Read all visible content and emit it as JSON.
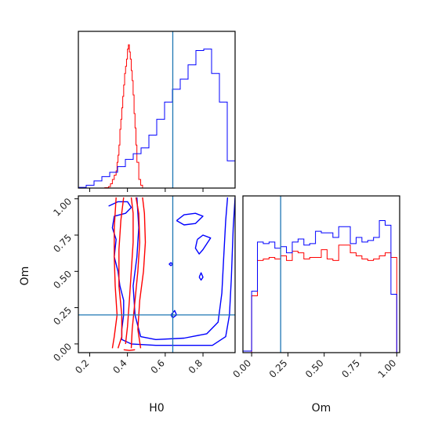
{
  "chart_data": {
    "type": "corner-plot",
    "parameters": [
      "H0",
      "Om"
    ],
    "truths": {
      "H0": 0.64,
      "Om": 0.2
    },
    "colors": {
      "series_a": "#ff0000",
      "series_b": "#0000ff",
      "truth_line": "#1f77b4"
    },
    "axes": {
      "H0": {
        "label": "H0",
        "range": [
          0.14,
          0.97
        ],
        "ticks": [
          0.2,
          0.4,
          0.6,
          0.8
        ],
        "tick_labels": [
          "0.2",
          "0.4",
          "0.6",
          "0.8"
        ]
      },
      "Om": {
        "label": "Om",
        "range": [
          -0.06,
          1.02
        ],
        "ticks": [
          0.0,
          0.25,
          0.5,
          0.75,
          1.0
        ],
        "tick_labels": [
          "0.00",
          "0.25",
          "0.50",
          "0.75",
          "1.00"
        ]
      }
    },
    "hist_h0": {
      "edges": [
        0.14,
        0.1815,
        0.223,
        0.2645,
        0.306,
        0.3475,
        0.389,
        0.4305,
        0.472,
        0.5135,
        0.555,
        0.5965,
        0.638,
        0.6795,
        0.721,
        0.7625,
        0.804,
        0.8455,
        0.887,
        0.9285,
        0.97
      ],
      "series": [
        {
          "counts": [
            0,
            0,
            0,
            0,
            0,
            0,
            0,
            0,
            0,
            0,
            0,
            0,
            0,
            0,
            0,
            0,
            0,
            0,
            0,
            0
          ],
          "fine_edges": [
            0.28,
            0.3,
            0.31,
            0.32,
            0.33,
            0.34,
            0.345,
            0.35,
            0.355,
            0.36,
            0.365,
            0.37,
            0.375,
            0.38,
            0.385,
            0.39,
            0.395,
            0.4,
            0.405,
            0.41,
            0.415,
            0.42,
            0.425,
            0.43,
            0.435,
            0.44,
            0.445,
            0.45,
            0.46,
            0.47,
            0.48
          ],
          "fine_counts": [
            0.003,
            0.01,
            0.03,
            0.06,
            0.09,
            0.12,
            0.18,
            0.23,
            0.3,
            0.41,
            0.48,
            0.56,
            0.64,
            0.72,
            0.8,
            0.85,
            0.9,
            0.97,
            1.0,
            0.95,
            0.9,
            0.82,
            0.75,
            0.65,
            0.52,
            0.42,
            0.3,
            0.18,
            0.06,
            0.02
          ]
        },
        {
          "counts": [
            0.005,
            0.02,
            0.05,
            0.08,
            0.11,
            0.15,
            0.2,
            0.24,
            0.28,
            0.37,
            0.48,
            0.6,
            0.69,
            0.76,
            0.86,
            0.96,
            0.97,
            0.8,
            0.6,
            0.19
          ],
          "fine_edges": [],
          "fine_counts": []
        }
      ]
    },
    "hist_om": {
      "edges": [
        -0.06,
        0.0,
        0.04,
        0.08,
        0.12,
        0.16,
        0.2,
        0.24,
        0.28,
        0.32,
        0.36,
        0.4,
        0.44,
        0.48,
        0.52,
        0.56,
        0.6,
        0.64,
        0.68,
        0.72,
        0.76,
        0.8,
        0.84,
        0.88,
        0.92,
        0.96,
        1.0,
        1.02
      ],
      "series": [
        {
          "counts": [
            0,
            0.37,
            0.6,
            0.61,
            0.62,
            0.61,
            0.63,
            0.6,
            0.66,
            0.65,
            0.61,
            0.62,
            0.62,
            0.67,
            0.61,
            0.6,
            0.7,
            0.7,
            0.65,
            0.63,
            0.61,
            0.6,
            0.61,
            0.63,
            0.65,
            0.62,
            0.0
          ]
        },
        {
          "counts": [
            0.01,
            0.4,
            0.72,
            0.71,
            0.72,
            0.68,
            0.69,
            0.65,
            0.72,
            0.74,
            0.7,
            0.71,
            0.79,
            0.78,
            0.78,
            0.75,
            0.82,
            0.82,
            0.71,
            0.75,
            0.72,
            0.73,
            0.75,
            0.86,
            0.83,
            0.38,
            0.0
          ]
        }
      ]
    },
    "contour_series_a": [
      [
        [
          0.35,
          -0.03
        ],
        [
          0.37,
          0.05
        ],
        [
          0.37,
          0.2
        ],
        [
          0.355,
          0.4
        ],
        [
          0.355,
          0.65
        ],
        [
          0.365,
          0.85
        ],
        [
          0.38,
          1.01
        ]
      ],
      [
        [
          0.42,
          -0.03
        ],
        [
          0.425,
          0.1
        ],
        [
          0.44,
          0.3
        ],
        [
          0.455,
          0.5
        ],
        [
          0.465,
          0.7
        ],
        [
          0.46,
          0.9
        ],
        [
          0.445,
          1.01
        ]
      ],
      [
        [
          0.32,
          -0.03
        ],
        [
          0.33,
          0.05
        ],
        [
          0.345,
          0.2
        ],
        [
          0.335,
          0.4
        ],
        [
          0.33,
          0.6
        ],
        [
          0.33,
          0.8
        ],
        [
          0.34,
          1.01
        ]
      ],
      [
        [
          0.47,
          -0.03
        ],
        [
          0.455,
          0.1
        ],
        [
          0.465,
          0.3
        ],
        [
          0.485,
          0.5
        ],
        [
          0.495,
          0.7
        ],
        [
          0.49,
          0.9
        ],
        [
          0.48,
          1.01
        ]
      ],
      [
        [
          0.39,
          0.0
        ],
        [
          0.4,
          0.12
        ],
        [
          0.41,
          0.3
        ],
        [
          0.42,
          0.5
        ],
        [
          0.43,
          0.7
        ],
        [
          0.43,
          0.9
        ],
        [
          0.42,
          1.01
        ]
      ],
      [
        [
          0.38,
          -0.04
        ],
        [
          0.41,
          -0.045
        ],
        [
          0.44,
          -0.04
        ]
      ]
    ],
    "contour_series_b": [
      [
        [
          0.3,
          0.95
        ],
        [
          0.35,
          0.98
        ],
        [
          0.4,
          0.98
        ],
        [
          0.42,
          0.94
        ],
        [
          0.39,
          0.9
        ],
        [
          0.33,
          0.88
        ],
        [
          0.32,
          0.8
        ],
        [
          0.34,
          0.72
        ],
        [
          0.33,
          0.6
        ],
        [
          0.35,
          0.5
        ],
        [
          0.36,
          0.4
        ],
        [
          0.38,
          0.3
        ],
        [
          0.38,
          0.2
        ],
        [
          0.37,
          0.1
        ],
        [
          0.37,
          0.03
        ],
        [
          0.42,
          0.0
        ],
        [
          0.55,
          -0.01
        ],
        [
          0.7,
          -0.01
        ],
        [
          0.85,
          -0.01
        ],
        [
          0.92,
          0.05
        ],
        [
          0.94,
          0.2
        ],
        [
          0.95,
          0.45
        ],
        [
          0.96,
          0.8
        ],
        [
          0.97,
          1.01
        ]
      ],
      [
        [
          0.45,
          1.01
        ],
        [
          0.46,
          0.8
        ],
        [
          0.45,
          0.6
        ],
        [
          0.43,
          0.4
        ],
        [
          0.44,
          0.2
        ],
        [
          0.47,
          0.05
        ],
        [
          0.55,
          0.03
        ],
        [
          0.7,
          0.04
        ],
        [
          0.82,
          0.07
        ],
        [
          0.88,
          0.15
        ],
        [
          0.9,
          0.35
        ],
        [
          0.91,
          0.6
        ],
        [
          0.92,
          0.85
        ],
        [
          0.93,
          1.01
        ]
      ],
      [
        [
          0.66,
          0.85
        ],
        [
          0.7,
          0.89
        ],
        [
          0.76,
          0.9
        ],
        [
          0.8,
          0.88
        ],
        [
          0.76,
          0.83
        ],
        [
          0.7,
          0.82
        ],
        [
          0.66,
          0.85
        ]
      ],
      [
        [
          0.77,
          0.72
        ],
        [
          0.8,
          0.75
        ],
        [
          0.84,
          0.73
        ],
        [
          0.8,
          0.65
        ],
        [
          0.78,
          0.62
        ],
        [
          0.76,
          0.66
        ],
        [
          0.77,
          0.72
        ]
      ],
      [
        [
          0.63,
          0.2
        ],
        [
          0.65,
          0.23
        ],
        [
          0.66,
          0.2
        ],
        [
          0.64,
          0.18
        ],
        [
          0.63,
          0.2
        ]
      ],
      [
        [
          0.78,
          0.46
        ],
        [
          0.79,
          0.49
        ],
        [
          0.8,
          0.46
        ],
        [
          0.79,
          0.44
        ],
        [
          0.78,
          0.46
        ]
      ],
      [
        [
          0.62,
          0.55
        ],
        [
          0.63,
          0.56
        ],
        [
          0.64,
          0.55
        ],
        [
          0.63,
          0.54
        ],
        [
          0.62,
          0.55
        ]
      ]
    ]
  }
}
